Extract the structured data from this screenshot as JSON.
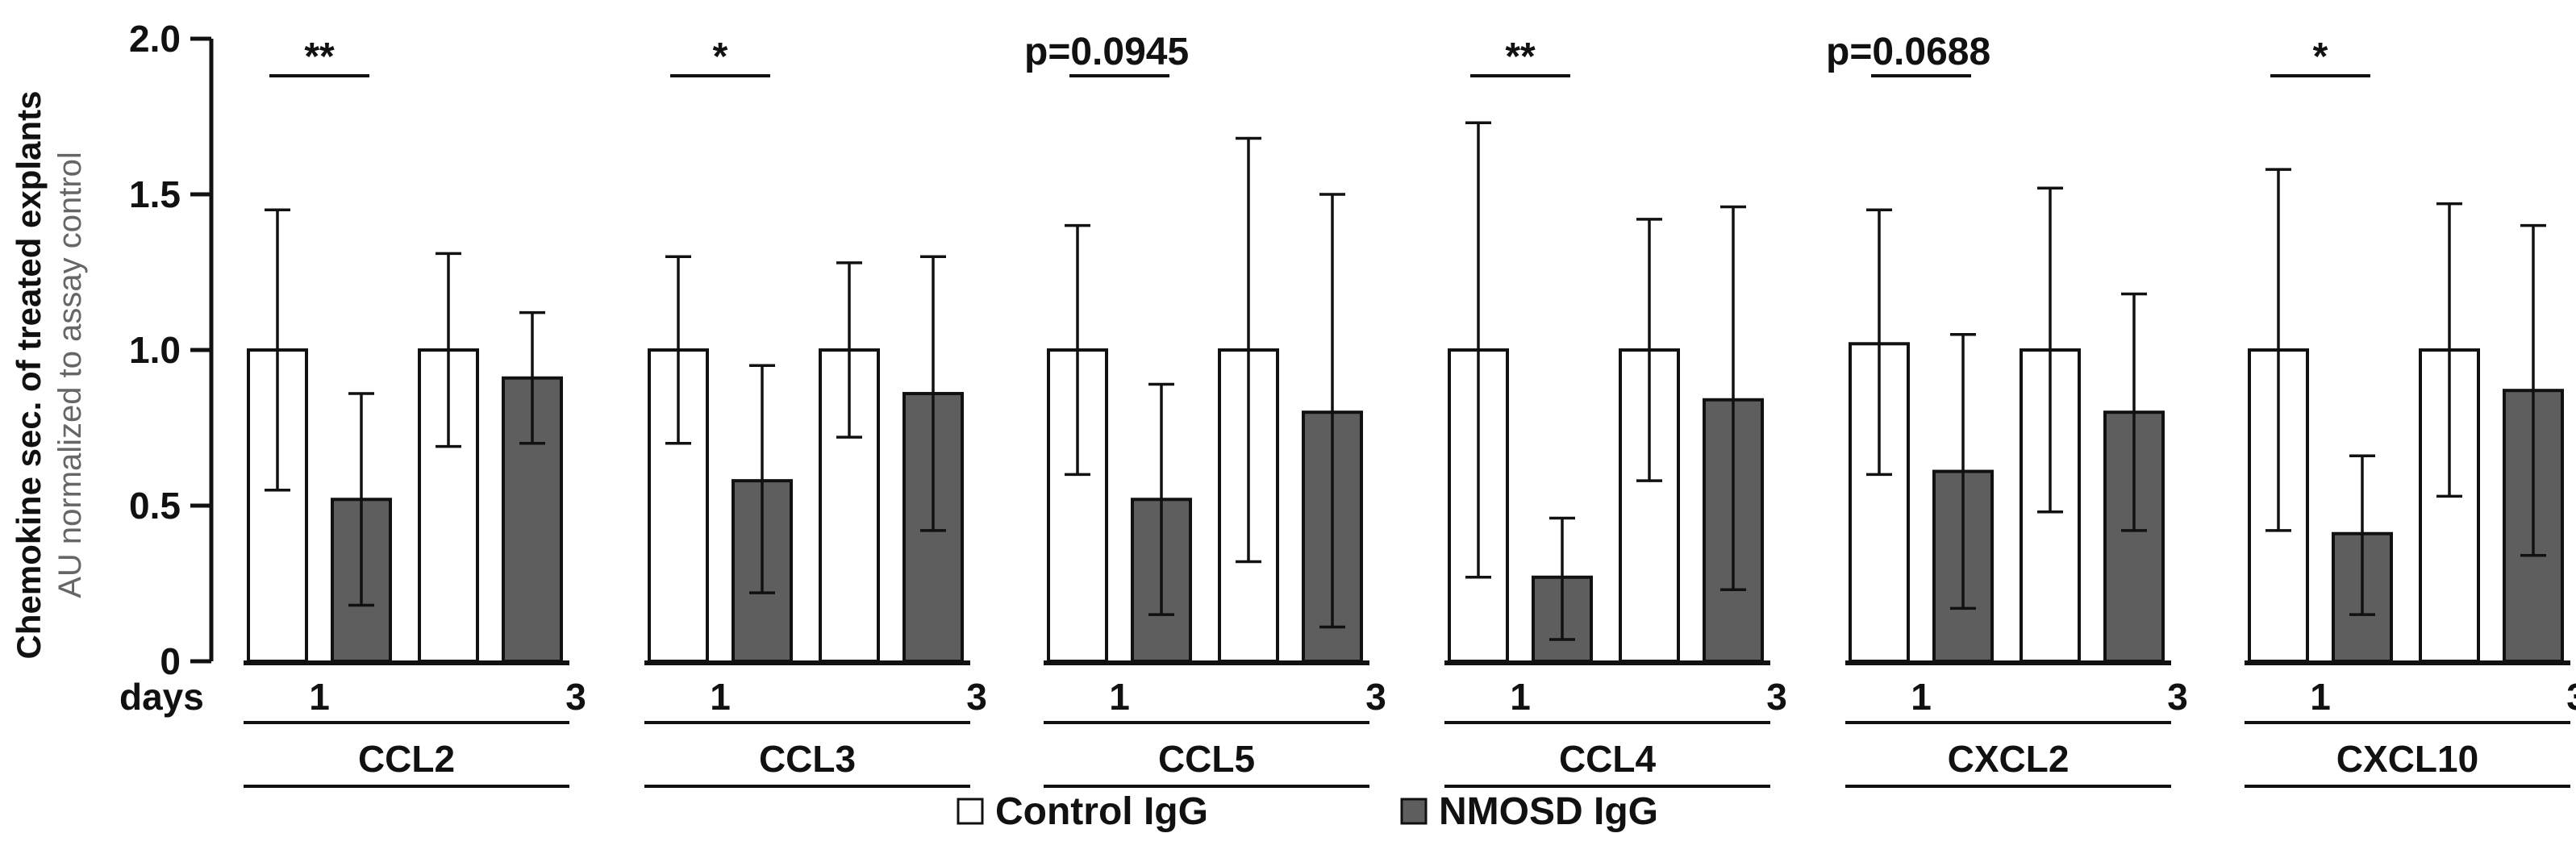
{
  "chart_data": {
    "type": "bar",
    "ylabel": "Chemokine sec. of treated explants",
    "ylabel_sub": "AU normalized to assay control",
    "ylim": [
      0,
      2.0
    ],
    "yticks": [
      0,
      0.5,
      1.0,
      1.5,
      2.0
    ],
    "ytick_labels": [
      "0",
      "0.5",
      "1.0",
      "1.5",
      "2.0"
    ],
    "xlabel": "days",
    "days": [
      "1",
      "3"
    ],
    "series": [
      {
        "name": "Control IgG",
        "color": "#ffffff"
      },
      {
        "name": "NMOSD IgG",
        "color": "#5e5e5e"
      }
    ],
    "groups": [
      {
        "name": "CCL2",
        "values": [
          [
            1.0,
            0.52
          ],
          [
            1.0,
            0.91
          ]
        ],
        "errors": [
          [
            [
              0.55,
              1.45
            ],
            [
              0.18,
              0.86
            ]
          ],
          [
            [
              0.69,
              1.31
            ],
            [
              0.7,
              1.12
            ]
          ]
        ],
        "significance": "**"
      },
      {
        "name": "CCL3",
        "values": [
          [
            1.0,
            0.58
          ],
          [
            1.0,
            0.86
          ]
        ],
        "errors": [
          [
            [
              0.7,
              1.3
            ],
            [
              0.22,
              0.95
            ]
          ],
          [
            [
              0.72,
              1.28
            ],
            [
              0.42,
              1.3
            ]
          ]
        ],
        "significance": "*"
      },
      {
        "name": "CCL5",
        "values": [
          [
            1.0,
            0.52
          ],
          [
            1.0,
            0.8
          ]
        ],
        "errors": [
          [
            [
              0.6,
              1.4
            ],
            [
              0.15,
              0.89
            ]
          ],
          [
            [
              0.32,
              1.68
            ],
            [
              0.11,
              1.5
            ]
          ]
        ],
        "significance": "p=0.0945"
      },
      {
        "name": "CCL4",
        "values": [
          [
            1.0,
            0.27
          ],
          [
            1.0,
            0.84
          ]
        ],
        "errors": [
          [
            [
              0.27,
              1.73
            ],
            [
              0.07,
              0.46
            ]
          ],
          [
            [
              0.58,
              1.42
            ],
            [
              0.23,
              1.46
            ]
          ]
        ],
        "significance": "**"
      },
      {
        "name": "CXCL2",
        "values": [
          [
            1.02,
            0.61
          ],
          [
            1.0,
            0.8
          ]
        ],
        "errors": [
          [
            [
              0.6,
              1.45
            ],
            [
              0.17,
              1.05
            ]
          ],
          [
            [
              0.48,
              1.52
            ],
            [
              0.42,
              1.18
            ]
          ]
        ],
        "significance": "p=0.0688"
      },
      {
        "name": "CXCL10",
        "values": [
          [
            1.0,
            0.41
          ],
          [
            1.0,
            0.87
          ]
        ],
        "errors": [
          [
            [
              0.42,
              1.58
            ],
            [
              0.15,
              0.66
            ]
          ],
          [
            [
              0.53,
              1.47
            ],
            [
              0.34,
              1.4
            ]
          ]
        ],
        "significance": "*"
      }
    ],
    "legend": [
      "Control IgG",
      "NMOSD IgG"
    ],
    "legend_position": "bottom-center"
  }
}
